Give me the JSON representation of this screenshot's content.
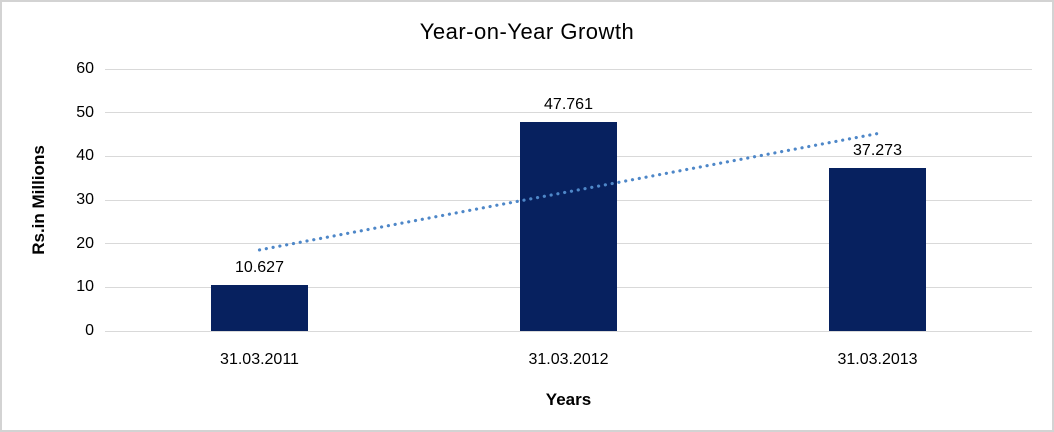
{
  "chart_data": {
    "type": "bar",
    "title": "Year-on-Year Growth",
    "xlabel": "Years",
    "ylabel": "Rs.in Millions",
    "categories": [
      "31.03.2011",
      "31.03.2012",
      "31.03.2013"
    ],
    "values": [
      10.627,
      47.761,
      37.273
    ],
    "data_labels": [
      "10.627",
      "47.761",
      "37.273"
    ],
    "ylim": [
      0,
      60
    ],
    "ytick_step": 10,
    "grid": true,
    "legend": "none",
    "trendline": {
      "type": "linear",
      "style": "dotted"
    },
    "colors": {
      "bar": "#07215f",
      "trendline": "#4e87c8",
      "gridline": "#d9d9d9",
      "text": "#000000",
      "frame_border": "#d3d3d3",
      "background": "#ffffff"
    }
  }
}
